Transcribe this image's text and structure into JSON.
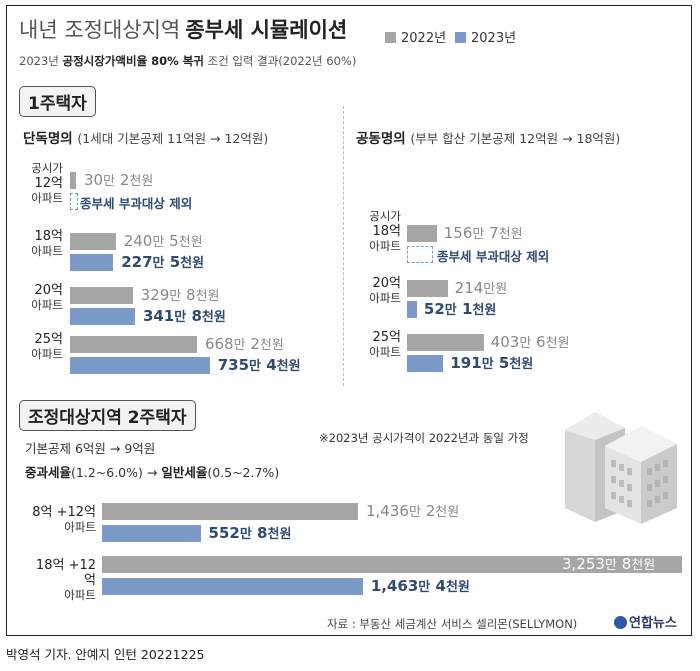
{
  "header": {
    "title_light": "내년 조정대상지역",
    "title_bold": "종부세 시뮬레이션",
    "subtitle_pre": "2023년 ",
    "subtitle_bold": "공정시장가액비율 80% 복귀",
    "subtitle_post": " 조건 입력 결과(2022년 60%)"
  },
  "legend": [
    {
      "label": "2022년",
      "color": "#a6a6a6"
    },
    {
      "label": "2023년",
      "color": "#7c9ac7"
    }
  ],
  "colors": {
    "bar_2022": "#a6a6a6",
    "bar_2023": "#7c9ac7",
    "value_2023": "#2f4a73"
  },
  "section1": {
    "title": "1주택자",
    "left": {
      "heading": "단독명의",
      "heading_note": "(1세대 기본공제 11억원 → 12억원)",
      "price_label": "공시가"
    },
    "right": {
      "heading": "공동명의",
      "heading_note": "(부부 합산 기본공제 12억원 → 18억원)",
      "price_label": "공시가"
    },
    "exclusion_label": "종부세 부과대상 제외"
  },
  "section2": {
    "title": "조정대상지역 2주택자",
    "line1": "기본공제 6억원 → 9억원",
    "line2_pre": "중과세율",
    "line2_mid": "(1.2~6.0%) → ",
    "line2_bold": "일반세율",
    "line2_post": "(0.5~2.7%)",
    "note": "※2023년 공시가격이 2022년과 동일 가정"
  },
  "chart_data": [
    {
      "type": "bar",
      "title": "단독명의",
      "categories": [
        "12억 아파트",
        "18억 아파트",
        "20억 아파트",
        "25억 아파트"
      ],
      "series": [
        {
          "name": "2022년",
          "values": [
            30.2,
            240.5,
            329.8,
            668.2
          ],
          "labels": [
            [
              "30",
              "2"
            ],
            [
              "240",
              "5"
            ],
            [
              "329",
              "8"
            ],
            [
              "668",
              "2"
            ]
          ]
        },
        {
          "name": "2023년",
          "values": [
            0,
            227.5,
            341.8,
            735.4
          ],
          "labels": [
            null,
            [
              "227",
              "5"
            ],
            [
              "341",
              "8"
            ],
            [
              "735",
              "4"
            ]
          ]
        }
      ]
    },
    {
      "type": "bar",
      "title": "공동명의",
      "categories": [
        "18억 아파트",
        "20억 아파트",
        "25억 아파트"
      ],
      "series": [
        {
          "name": "2022년",
          "values": [
            156.7,
            214.0,
            403.6
          ],
          "labels": [
            [
              "156",
              "7"
            ],
            [
              "214",
              ""
            ],
            [
              "403",
              "6"
            ]
          ]
        },
        {
          "name": "2023년",
          "values": [
            0,
            52.1,
            191.5
          ],
          "labels": [
            null,
            [
              "52",
              "1"
            ],
            [
              "191",
              "5"
            ]
          ]
        }
      ]
    },
    {
      "type": "bar",
      "title": "조정대상지역 2주택자",
      "categories": [
        "8억 +12억 아파트",
        "18억 +12억 아파트"
      ],
      "series": [
        {
          "name": "2022년",
          "values": [
            1436.2,
            3253.8
          ],
          "labels": [
            [
              "1,436",
              "2"
            ],
            [
              "3,253",
              "8"
            ]
          ]
        },
        {
          "name": "2023년",
          "values": [
            552.8,
            1463.4
          ],
          "labels": [
            [
              "552",
              "8"
            ],
            [
              "1,463",
              "4"
            ]
          ]
        }
      ]
    }
  ],
  "units": {
    "man": "만",
    "cheon": "천원",
    "man_won": "만원"
  },
  "footer": {
    "source": "자료 : 부동산 세금계산 서비스 셀리몬(SELLYMON)",
    "logo": "연합뉴스",
    "credit": "박영석 기자. 안예지 인턴  20221225"
  }
}
